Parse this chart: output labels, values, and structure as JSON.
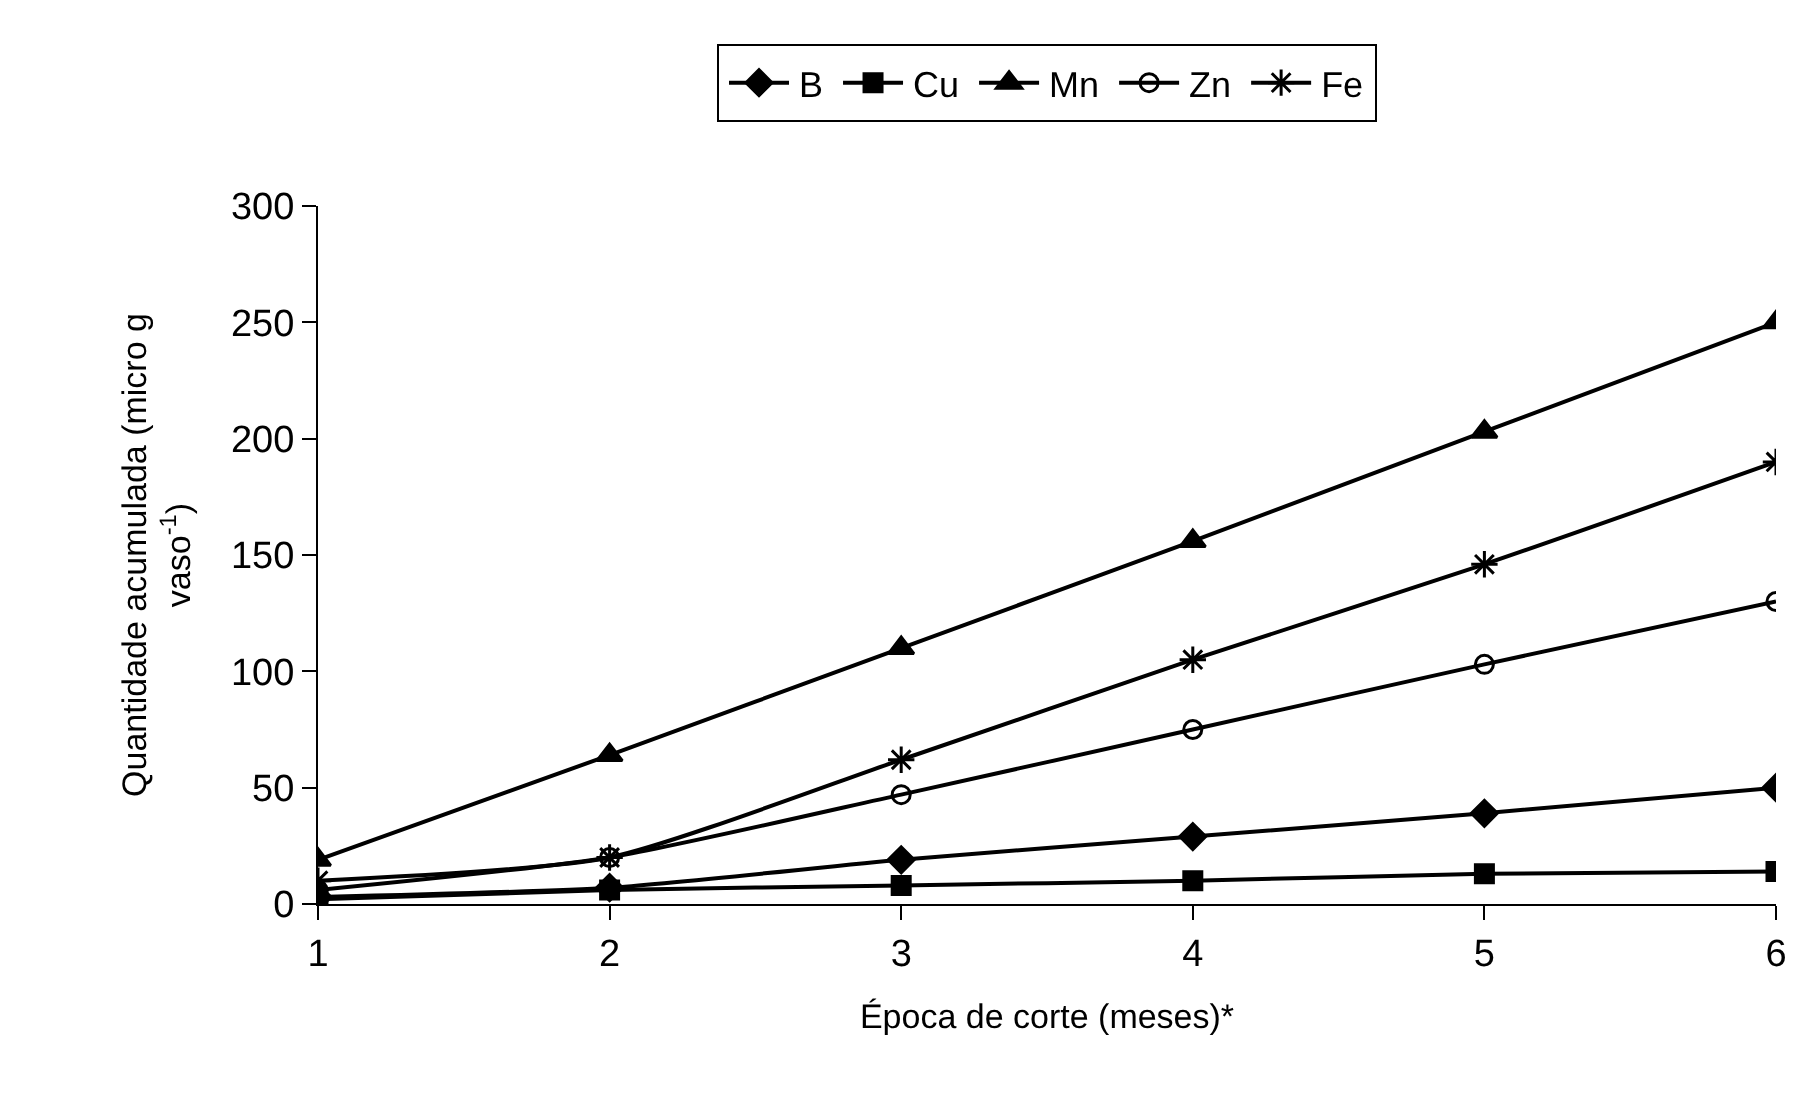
{
  "chart_data": {
    "type": "line",
    "xlabel": "Época de corte (meses)*",
    "ylabel": "Quantidade acumulada (micro g vaso$^{-1}$)",
    "x": [
      1,
      2,
      3,
      4,
      5,
      6
    ],
    "xlim": [
      1,
      6
    ],
    "xticks": [
      1,
      2,
      3,
      4,
      5,
      6
    ],
    "ylim": [
      0,
      300
    ],
    "yticks": [
      0,
      50,
      100,
      150,
      200,
      250,
      300
    ],
    "legend": "top",
    "line_style": "solid",
    "series": [
      {
        "name": "B",
        "color": "#000000",
        "marker": "diamond",
        "values": [
          3,
          7,
          19,
          29,
          39,
          50
        ]
      },
      {
        "name": "Cu",
        "color": "#000000",
        "marker": "square",
        "values": [
          2,
          6,
          8,
          10,
          13,
          14
        ]
      },
      {
        "name": "Mn",
        "color": "#000000",
        "marker": "triangle",
        "values": [
          19,
          64,
          110,
          156,
          203,
          250
        ]
      },
      {
        "name": "Zn",
        "color": "#000000",
        "marker": "circle-open",
        "values": [
          6,
          20,
          47,
          75,
          103,
          130
        ]
      },
      {
        "name": "Fe",
        "color": "#000000",
        "marker": "cross",
        "values": [
          10,
          20,
          62,
          105,
          146,
          190
        ]
      }
    ]
  }
}
